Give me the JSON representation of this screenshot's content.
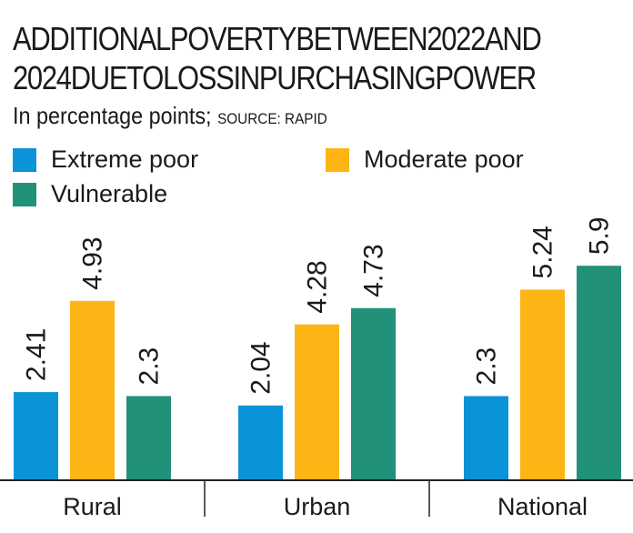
{
  "chart_data": {
    "type": "bar",
    "title": [
      "ADDITIONALPOVERTYBETWEEN2022AND",
      "2024DUETOLOSSINPURCHASINGPOWER"
    ],
    "subtitle": "In percentage points;",
    "source": "SOURCE: RAPID",
    "categories": [
      "Rural",
      "Urban",
      "National"
    ],
    "series": [
      {
        "name": "Extreme poor",
        "color": "#0b93d8",
        "values": [
          2.41,
          2.04,
          2.3
        ]
      },
      {
        "name": "Moderate poor",
        "color": "#fdb515",
        "values": [
          4.93,
          4.28,
          5.24
        ]
      },
      {
        "name": "Vulnerable",
        "color": "#22917a",
        "values": [
          2.3,
          4.73,
          5.9
        ]
      }
    ],
    "ylim": [
      0,
      6.5
    ],
    "grid": false,
    "legend": "top-left"
  }
}
